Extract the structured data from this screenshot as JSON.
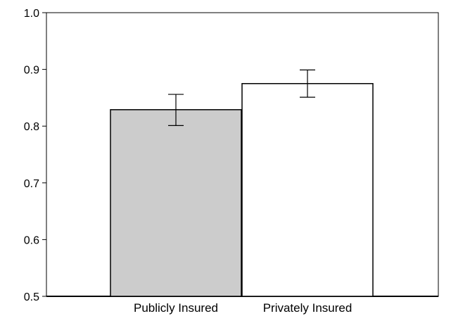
{
  "chart_data": {
    "type": "bar",
    "categories": [
      "Publicly Insured",
      "Privately Insured"
    ],
    "values": [
      0.829,
      0.875
    ],
    "error_low": [
      0.801,
      0.851
    ],
    "error_high": [
      0.856,
      0.899
    ],
    "bar_colors": [
      "#cccccc",
      "#ffffff"
    ],
    "ylim": [
      0.5,
      1.0
    ],
    "yticks": [
      0.5,
      0.6,
      0.7,
      0.8,
      0.9,
      1.0
    ],
    "ytick_labels": [
      "0.5",
      "0.6",
      "0.7",
      "0.8",
      "0.9",
      "1.0"
    ],
    "grid": false,
    "title": "",
    "xlabel": "",
    "ylabel": ""
  }
}
